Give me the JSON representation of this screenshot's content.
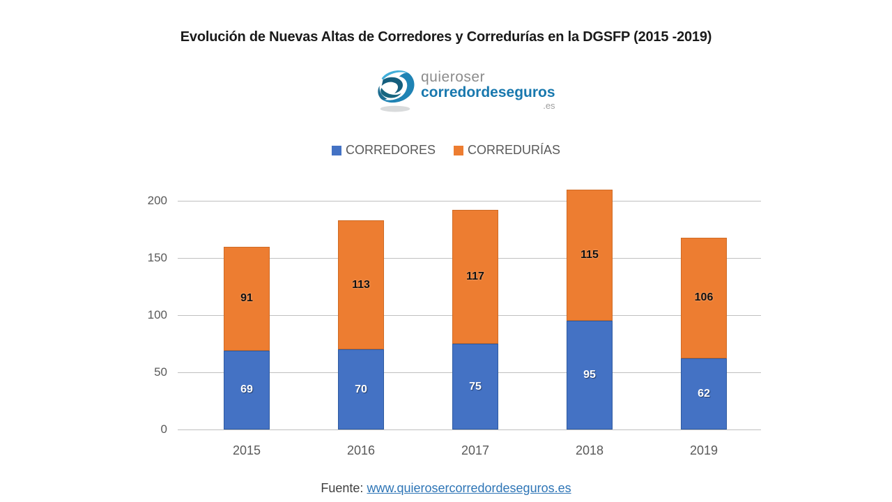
{
  "title": "Evolución de Nuevas Altas de Corredores y Corredurías en la DGSFP (2015 -2019)",
  "logo": {
    "icon": "quieroser-swirl-logo",
    "line1": "quieroser",
    "line2": "corredordeseguros",
    "line3": ".es",
    "colors": {
      "line1": "#8c8c8c",
      "line2": "#1878ae",
      "line3": "#9e9e9e"
    }
  },
  "chart_data": {
    "type": "bar",
    "stacked": true,
    "categories": [
      "2015",
      "2016",
      "2017",
      "2018",
      "2019"
    ],
    "series": [
      {
        "name": "CORREDORES",
        "color": "#4472c4",
        "values": [
          69,
          70,
          75,
          95,
          62
        ]
      },
      {
        "name": "CORREDURÍAS",
        "color": "#ed7d31",
        "values": [
          91,
          113,
          117,
          115,
          106
        ]
      }
    ],
    "totals": [
      160,
      183,
      192,
      210,
      168
    ],
    "y_ticks": [
      0,
      50,
      100,
      150,
      200
    ],
    "ylim": [
      0,
      200
    ],
    "grid": true,
    "legend_position": "top",
    "gridline_color": "#bfbfbf"
  },
  "footer": {
    "prefix": "Fuente:",
    "link_text": "www.quierosercorredordeseguros.es"
  }
}
